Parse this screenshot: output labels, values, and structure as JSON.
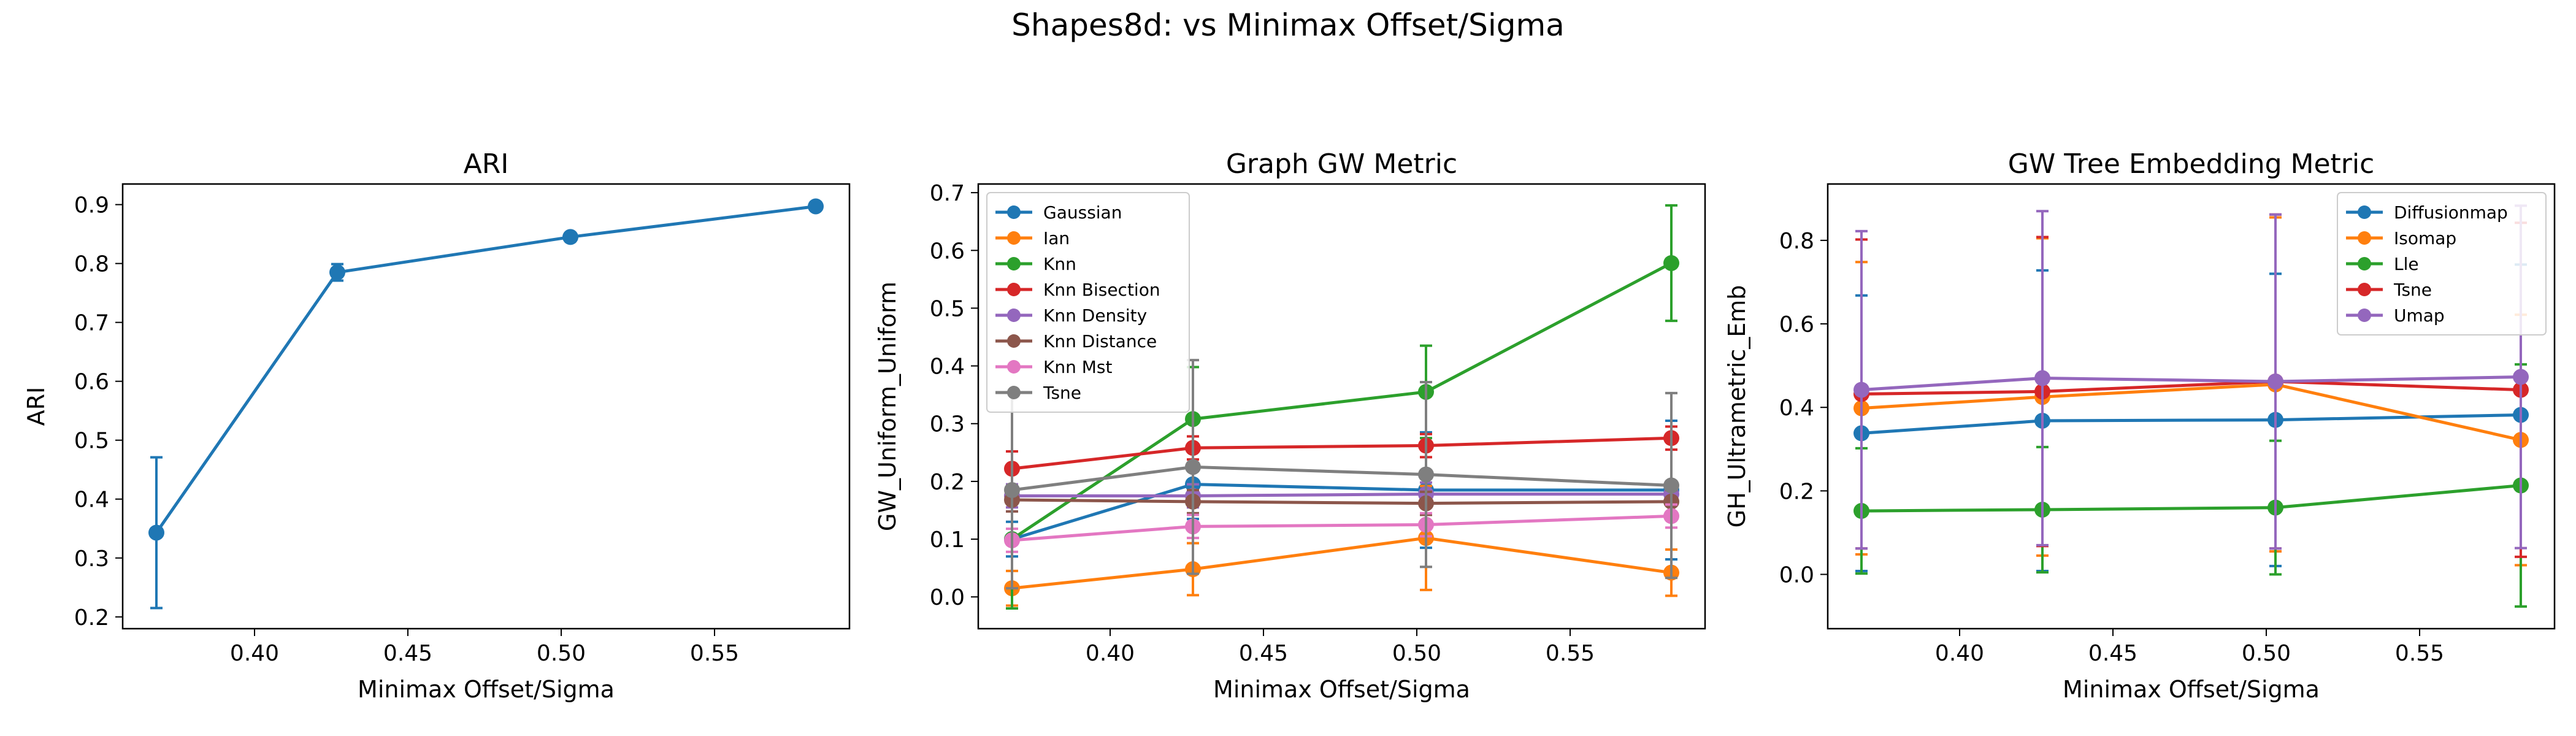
{
  "suptitle": "Shapes8d: vs Minimax Offset/Sigma",
  "chart_data": [
    {
      "type": "line",
      "title": "ARI",
      "xlabel": "Minimax Offset/Sigma",
      "ylabel": "ARI",
      "xlim": [
        0.357,
        0.594
      ],
      "ylim": [
        0.18,
        0.935
      ],
      "xticks": [
        0.4,
        0.45,
        0.5,
        0.55
      ],
      "yticks": [
        0.2,
        0.3,
        0.4,
        0.5,
        0.6,
        0.7,
        0.8,
        0.9
      ],
      "x": [
        0.368,
        0.427,
        0.503,
        0.583
      ],
      "legend": "none",
      "series": [
        {
          "color": "#1f77b4",
          "values": [
            0.343,
            0.785,
            0.845,
            0.897
          ],
          "err": [
            0.128,
            0.014,
            0.006,
            0.004
          ]
        }
      ]
    },
    {
      "type": "line",
      "title": "Graph GW Metric",
      "xlabel": "Minimax Offset/Sigma",
      "ylabel": "GW_Uniform_Uniform",
      "xlim": [
        0.357,
        0.594
      ],
      "ylim": [
        -0.055,
        0.715
      ],
      "xticks": [
        0.4,
        0.45,
        0.5,
        0.55
      ],
      "yticks": [
        0.0,
        0.1,
        0.2,
        0.3,
        0.4,
        0.5,
        0.6,
        0.7
      ],
      "x": [
        0.368,
        0.427,
        0.503,
        0.583
      ],
      "legend": "upper-left",
      "series": [
        {
          "name": "Gaussian",
          "color": "#1f77b4",
          "values": [
            0.1,
            0.195,
            0.185,
            0.185
          ],
          "err": [
            0.03,
            0.06,
            0.1,
            0.12
          ]
        },
        {
          "name": "Ian",
          "color": "#ff7f0e",
          "values": [
            0.015,
            0.048,
            0.102,
            0.042
          ],
          "err": [
            0.03,
            0.045,
            0.09,
            0.04
          ]
        },
        {
          "name": "Knn",
          "color": "#2ca02c",
          "values": [
            0.1,
            0.308,
            0.355,
            0.578
          ],
          "err": [
            0.12,
            0.09,
            0.08,
            0.1
          ]
        },
        {
          "name": "Knn Bisection",
          "color": "#d62728",
          "values": [
            0.222,
            0.258,
            0.262,
            0.275
          ],
          "err": [
            0.03,
            0.02,
            0.02,
            0.02
          ]
        },
        {
          "name": "Knn Density",
          "color": "#9467bd",
          "values": [
            0.175,
            0.175,
            0.178,
            0.178
          ],
          "err": [
            0.02,
            0.02,
            0.02,
            0.02
          ]
        },
        {
          "name": "Knn Distance",
          "color": "#8c564b",
          "values": [
            0.168,
            0.165,
            0.162,
            0.165
          ],
          "err": [
            0.02,
            0.02,
            0.02,
            0.02
          ]
        },
        {
          "name": "Knn Mst",
          "color": "#e377c2",
          "values": [
            0.098,
            0.122,
            0.125,
            0.14
          ],
          "err": [
            0.02,
            0.02,
            0.02,
            0.02
          ]
        },
        {
          "name": "Tsne",
          "color": "#7f7f7f",
          "values": [
            0.185,
            0.225,
            0.212,
            0.193
          ],
          "err": [
            0.17,
            0.185,
            0.16,
            0.16
          ]
        }
      ]
    },
    {
      "type": "line",
      "title": "GW Tree Embedding Metric",
      "xlabel": "Minimax Offset/Sigma",
      "ylabel": "GH_Ultrametric_Emb",
      "xlim": [
        0.357,
        0.594
      ],
      "ylim": [
        -0.13,
        0.935
      ],
      "xticks": [
        0.4,
        0.45,
        0.5,
        0.55
      ],
      "yticks": [
        0.0,
        0.2,
        0.4,
        0.6,
        0.8
      ],
      "x": [
        0.368,
        0.427,
        0.503,
        0.583
      ],
      "legend": "upper-right",
      "series": [
        {
          "name": "Diffusionmap",
          "color": "#1f77b4",
          "values": [
            0.338,
            0.368,
            0.37,
            0.382
          ],
          "err": [
            0.33,
            0.36,
            0.35,
            0.36
          ]
        },
        {
          "name": "Isomap",
          "color": "#ff7f0e",
          "values": [
            0.398,
            0.425,
            0.455,
            0.322
          ],
          "err": [
            0.35,
            0.38,
            0.4,
            0.3
          ]
        },
        {
          "name": "Lle",
          "color": "#2ca02c",
          "values": [
            0.152,
            0.155,
            0.16,
            0.213
          ],
          "err": [
            0.15,
            0.15,
            0.16,
            0.29
          ]
        },
        {
          "name": "Tsne",
          "color": "#d62728",
          "values": [
            0.432,
            0.438,
            0.462,
            0.442
          ],
          "err": [
            0.37,
            0.37,
            0.4,
            0.4
          ]
        },
        {
          "name": "Umap",
          "color": "#9467bd",
          "values": [
            0.442,
            0.47,
            0.462,
            0.473
          ],
          "err": [
            0.38,
            0.4,
            0.4,
            0.41
          ]
        }
      ]
    }
  ]
}
